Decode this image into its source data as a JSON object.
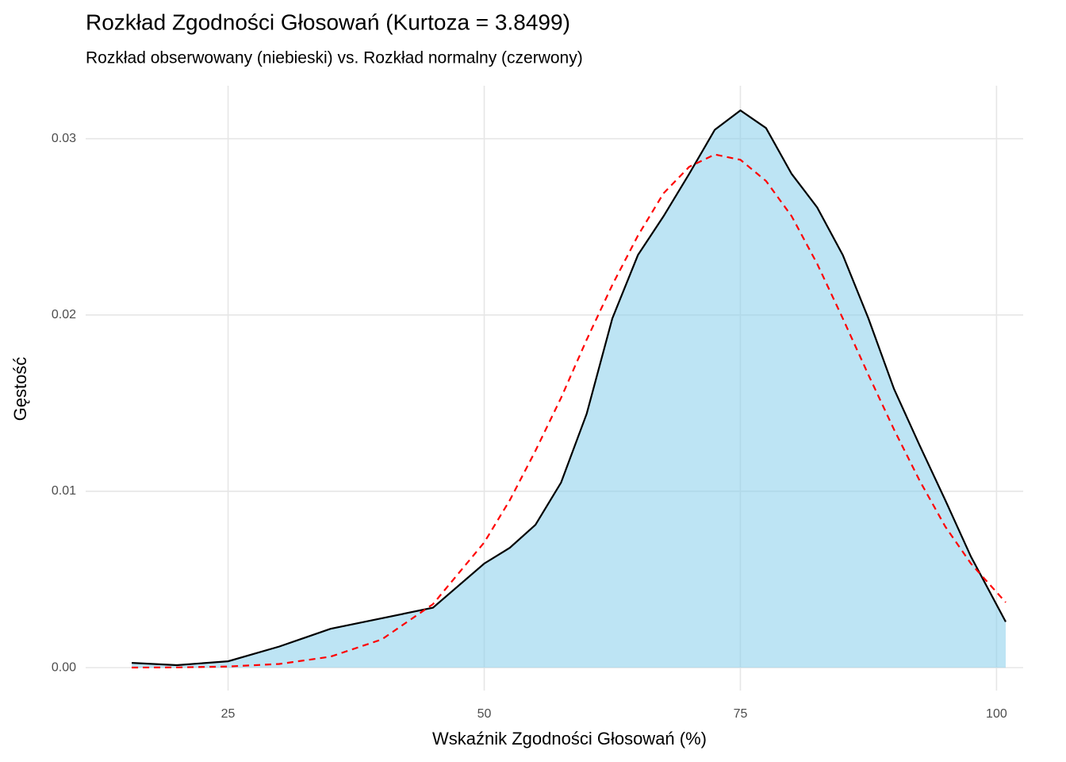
{
  "chart_data": {
    "type": "density",
    "title": "Rozkład Zgodności Głosowań (Kurtoza = 3.8499)",
    "subtitle": "Rozkład obserwowany (niebieski) vs. Rozkład normalny (czerwony)",
    "x_label": "Wskaźnik Zgodności Głosowań (%)",
    "y_label": "Gęstość",
    "x": [
      15.6,
      20,
      25,
      30,
      35,
      40,
      45,
      50,
      52.5,
      55,
      57.5,
      60,
      62.5,
      65,
      67.5,
      70,
      72.5,
      75,
      77.5,
      80,
      82.5,
      85,
      87.5,
      90,
      92.5,
      95,
      97.5,
      100.9
    ],
    "series": [
      {
        "color": "#000000",
        "fill": "#87ceeb",
        "dashed": false,
        "values": [
          0.00027,
          0.00014,
          0.00036,
          0.0012,
          0.0022,
          0.0028,
          0.0034,
          0.0059,
          0.0068,
          0.0081,
          0.0105,
          0.0144,
          0.0198,
          0.0234,
          0.0256,
          0.028,
          0.0305,
          0.0316,
          0.0306,
          0.028,
          0.0261,
          0.0234,
          0.0198,
          0.0158,
          0.0126,
          0.0095,
          0.0063,
          0.0026
        ]
      },
      {
        "color": "#ff0000",
        "dashed": true,
        "values": [
          4.5e-06,
          1.6e-05,
          6.3e-05,
          0.00021,
          0.00062,
          0.0016,
          0.0036,
          0.0071,
          0.0095,
          0.0123,
          0.0153,
          0.0186,
          0.0217,
          0.0245,
          0.0269,
          0.0284,
          0.0291,
          0.0288,
          0.0276,
          0.0256,
          0.0229,
          0.0198,
          0.0166,
          0.0135,
          0.0106,
          0.008,
          0.0059,
          0.0037
        ]
      }
    ],
    "xlim": [
      11.1,
      102.6
    ],
    "ylim": [
      -0.0013,
      0.033
    ],
    "xticks": [
      25,
      50,
      75,
      100
    ],
    "yticks": [
      {
        "value": 0,
        "label": "0.00"
      },
      0.01,
      0.02,
      0.03
    ],
    "grid": true
  }
}
